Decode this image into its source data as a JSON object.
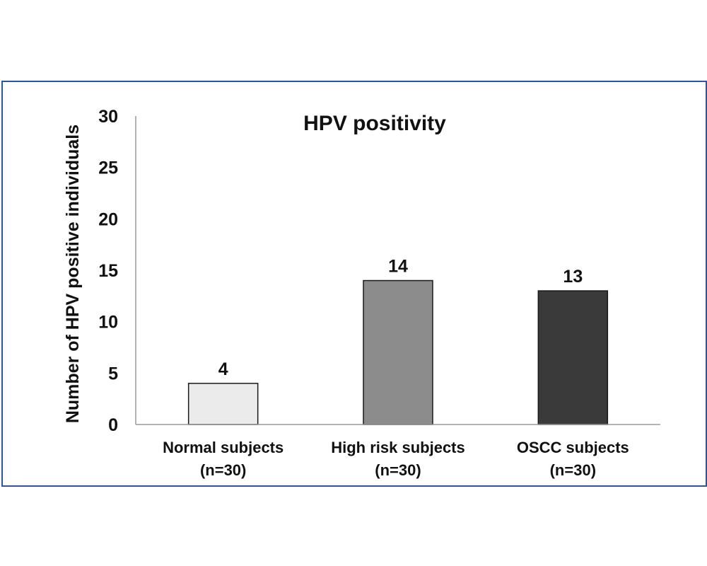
{
  "chart_data": {
    "type": "bar",
    "title": "HPV positivity",
    "xlabel": "",
    "ylabel": "Number of HPV positive individuals",
    "ylim": [
      0,
      30
    ],
    "yticks": [
      0,
      5,
      10,
      15,
      20,
      25,
      30
    ],
    "grid": false,
    "categories": [
      {
        "line1": "Normal subjects",
        "line2": "(n=30)"
      },
      {
        "line1": "High risk subjects",
        "line2": "(n=30)"
      },
      {
        "line1": "OSCC subjects",
        "line2": "(n=30)"
      }
    ],
    "values": [
      4,
      14,
      13
    ],
    "data_labels": [
      "4",
      "14",
      "13"
    ],
    "colors": [
      "#ebebeb",
      "#8c8c8c",
      "#3a3a3a"
    ],
    "frame_color": "#2f5597",
    "axis_color": "#9a9a9a"
  }
}
